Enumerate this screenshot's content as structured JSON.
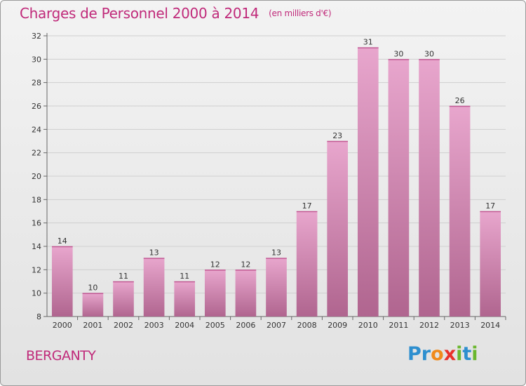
{
  "header": {
    "title": "Charges de Personnel 2000 à 2014",
    "subtitle": "(en milliers d'€)"
  },
  "footer": {
    "commune": "BERGANTY",
    "logo_letters": [
      {
        "ch": "P",
        "color": "#2e8fcf"
      },
      {
        "ch": "r",
        "color": "#2e8fcf"
      },
      {
        "ch": "o",
        "color": "#f08a1c"
      },
      {
        "ch": "x",
        "color": "#e8312a"
      },
      {
        "ch": "i",
        "color": "#6ab72e"
      },
      {
        "ch": "t",
        "color": "#2e8fcf"
      },
      {
        "ch": "i",
        "color": "#6ab72e"
      }
    ]
  },
  "chart_data": {
    "type": "bar",
    "title": "Charges de Personnel 2000 à 2014",
    "subtitle": "(en milliers d'€)",
    "categories": [
      "2000",
      "2001",
      "2002",
      "2003",
      "2004",
      "2005",
      "2006",
      "2007",
      "2008",
      "2009",
      "2010",
      "2011",
      "2012",
      "2013",
      "2014"
    ],
    "values": [
      14,
      10,
      11,
      13,
      11,
      12,
      12,
      13,
      17,
      23,
      31,
      30,
      30,
      26,
      17
    ],
    "ylim": [
      8,
      32
    ],
    "yticks": [
      8,
      10,
      12,
      14,
      16,
      18,
      20,
      22,
      24,
      26,
      28,
      30,
      32
    ],
    "grid": true,
    "bar_color_top": "#e8a6cd",
    "bar_color_bottom": "#b0658f"
  }
}
